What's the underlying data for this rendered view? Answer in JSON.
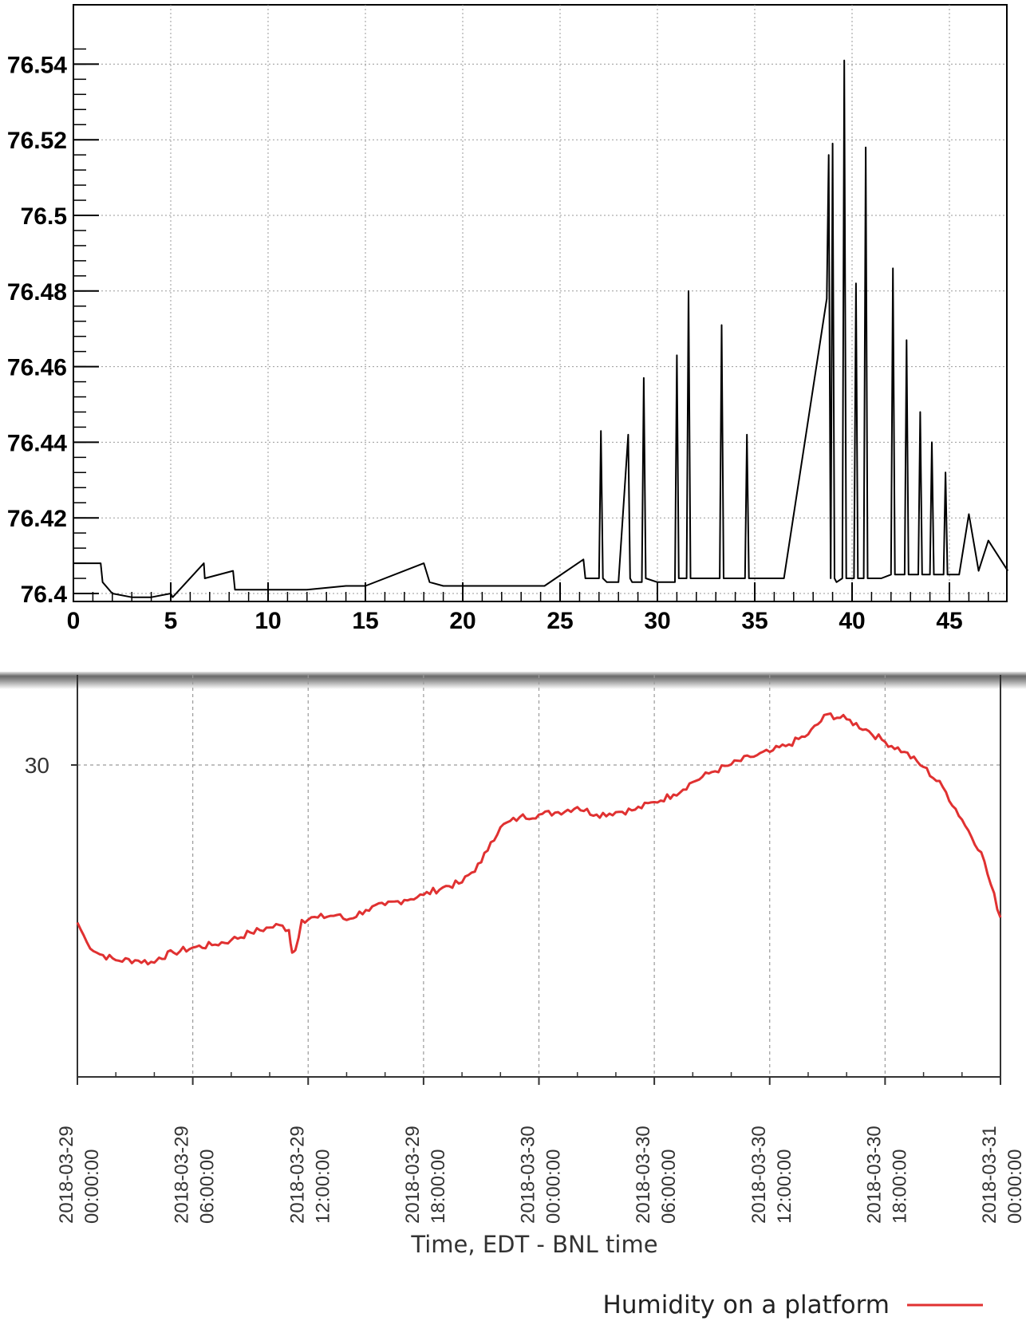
{
  "chart_data": [
    {
      "type": "line",
      "title": "",
      "xlabel": "",
      "ylabel": "",
      "xlim": [
        0,
        48
      ],
      "ylim": [
        76.4,
        76.545
      ],
      "x_ticks": [
        0,
        5,
        10,
        15,
        20,
        25,
        30,
        35,
        40,
        45
      ],
      "x_tick_labels": [
        "0",
        "5",
        "10",
        "15",
        "20",
        "25",
        "30",
        "35",
        "40",
        "45"
      ],
      "y_ticks": [
        76.4,
        76.42,
        76.44,
        76.46,
        76.48,
        76.5,
        76.52,
        76.54
      ],
      "y_tick_labels": [
        "76.4",
        "76.42",
        "76.44",
        "76.46",
        "76.48",
        "76.5",
        "76.52",
        "76.54"
      ],
      "grid": true,
      "color": "#000000",
      "series": [
        {
          "x": [
            0,
            1.4,
            1.5,
            2.0,
            3.0,
            4.0,
            5.0,
            5.1,
            6.7,
            6.75,
            8.2,
            8.3,
            9.0,
            10.0,
            12.0,
            14.0,
            15.0,
            18.0,
            18.3,
            19.0,
            20.0,
            22.0,
            24.2,
            26.2,
            26.3,
            27.0,
            27.1,
            27.2,
            27.4,
            28.0,
            28.5,
            28.6,
            28.7,
            29.2,
            29.3,
            29.4,
            30.0,
            30.9,
            31.0,
            31.1,
            31.5,
            31.6,
            31.7,
            32.5,
            33.2,
            33.3,
            33.4,
            34.0,
            34.5,
            34.6,
            34.7,
            35.5,
            36.5,
            38.7,
            38.8,
            38.9,
            39.0,
            39.1,
            39.2,
            39.5,
            39.6,
            39.7,
            40.1,
            40.2,
            40.3,
            40.6,
            40.7,
            40.8,
            41.5,
            42.0,
            42.1,
            42.2,
            42.7,
            42.8,
            42.9,
            43.4,
            43.5,
            43.6,
            44.0,
            44.1,
            44.2,
            44.7,
            44.8,
            44.9,
            45.5,
            46.0,
            46.5,
            47.0,
            48.0
          ],
          "y": [
            76.408,
            76.408,
            76.403,
            76.4,
            76.399,
            76.399,
            76.4,
            76.399,
            76.408,
            76.404,
            76.406,
            76.401,
            76.401,
            76.401,
            76.401,
            76.402,
            76.402,
            76.408,
            76.403,
            76.402,
            76.402,
            76.402,
            76.402,
            76.409,
            76.404,
            76.404,
            76.443,
            76.404,
            76.403,
            76.403,
            76.442,
            76.404,
            76.403,
            76.403,
            76.457,
            76.404,
            76.403,
            76.403,
            76.463,
            76.404,
            76.404,
            76.48,
            76.404,
            76.404,
            76.404,
            76.471,
            76.404,
            76.404,
            76.404,
            76.442,
            76.404,
            76.404,
            76.404,
            76.478,
            76.516,
            76.404,
            76.519,
            76.404,
            76.403,
            76.404,
            76.541,
            76.404,
            76.404,
            76.482,
            76.404,
            76.404,
            76.518,
            76.404,
            76.404,
            76.405,
            76.486,
            76.405,
            76.405,
            76.467,
            76.405,
            76.405,
            76.448,
            76.405,
            76.405,
            76.44,
            76.405,
            76.405,
            76.432,
            76.405,
            76.405,
            76.421,
            76.406,
            76.414,
            76.406
          ]
        }
      ]
    },
    {
      "type": "line",
      "title": "",
      "xlabel": "Time, EDT - BNL time",
      "ylabel": "",
      "x_range": [
        "2018-03-29 00:00:00",
        "2018-03-31 00:00:00"
      ],
      "ylim": [
        19,
        31.4
      ],
      "y_ticks": [
        30
      ],
      "y_tick_labels": [
        "30"
      ],
      "x_tick_labels": [
        [
          "2018-03-29",
          "00:00:00"
        ],
        [
          "2018-03-29",
          "06:00:00"
        ],
        [
          "2018-03-29",
          "12:00:00"
        ],
        [
          "2018-03-29",
          "18:00:00"
        ],
        [
          "2018-03-30",
          "00:00:00"
        ],
        [
          "2018-03-30",
          "06:00:00"
        ],
        [
          "2018-03-30",
          "12:00:00"
        ],
        [
          "2018-03-30",
          "18:00:00"
        ],
        [
          "2018-03-31",
          "00:00:00"
        ]
      ],
      "grid": true,
      "legend": "bottom-right",
      "series": [
        {
          "name": "Humidity on a platform",
          "color": "#e03131",
          "x": [
            "2018-03-29 00:00:00",
            "2018-03-29 00:30:00",
            "2018-03-29 01:00:00",
            "2018-03-29 02:00:00",
            "2018-03-29 03:00:00",
            "2018-03-29 04:00:00",
            "2018-03-29 04:15:00",
            "2018-03-29 05:00:00",
            "2018-03-29 06:00:00",
            "2018-03-29 07:00:00",
            "2018-03-29 08:00:00",
            "2018-03-29 09:00:00",
            "2018-03-29 10:00:00",
            "2018-03-29 10:30:00",
            "2018-03-29 11:00:00",
            "2018-03-29 11:10:00",
            "2018-03-29 11:20:00",
            "2018-03-29 11:40:00",
            "2018-03-29 12:30:00",
            "2018-03-29 13:30:00",
            "2018-03-29 14:00:00",
            "2018-03-29 15:00:00",
            "2018-03-29 16:00:00",
            "2018-03-29 17:00:00",
            "2018-03-29 18:00:00",
            "2018-03-29 19:00:00",
            "2018-03-29 20:00:00",
            "2018-03-29 21:00:00",
            "2018-03-29 21:30:00",
            "2018-03-29 22:00:00",
            "2018-03-29 23:00:00",
            "2018-03-30 00:00:00",
            "2018-03-30 01:00:00",
            "2018-03-30 02:00:00",
            "2018-03-30 03:00:00",
            "2018-03-30 04:00:00",
            "2018-03-30 05:00:00",
            "2018-03-30 06:00:00",
            "2018-03-30 07:00:00",
            "2018-03-30 08:00:00",
            "2018-03-30 09:00:00",
            "2018-03-30 10:00:00",
            "2018-03-30 11:00:00",
            "2018-03-30 12:00:00",
            "2018-03-30 13:00:00",
            "2018-03-30 14:00:00",
            "2018-03-30 15:00:00",
            "2018-03-30 16:00:00",
            "2018-03-30 17:00:00",
            "2018-03-30 18:00:00",
            "2018-03-30 19:00:00",
            "2018-03-30 20:00:00",
            "2018-03-30 21:00:00",
            "2018-03-30 22:00:00",
            "2018-03-30 23:00:00",
            "2018-03-31 00:00:00"
          ],
          "y": [
            22.8,
            22.0,
            21.6,
            21.3,
            21.3,
            21.2,
            21.4,
            21.6,
            21.8,
            21.9,
            22.1,
            22.4,
            22.6,
            22.7,
            22.5,
            21.6,
            21.7,
            22.9,
            23.0,
            23.1,
            22.9,
            23.3,
            23.5,
            23.7,
            23.9,
            24.2,
            24.4,
            25.2,
            26.0,
            26.6,
            27.0,
            27.1,
            27.2,
            27.4,
            27.1,
            27.2,
            27.3,
            27.6,
            27.9,
            28.4,
            28.8,
            29.1,
            29.4,
            29.6,
            29.9,
            30.3,
            31.1,
            30.9,
            30.5,
            30.0,
            29.6,
            29.0,
            28.2,
            26.9,
            25.6,
            23.0
          ]
        }
      ]
    }
  ]
}
